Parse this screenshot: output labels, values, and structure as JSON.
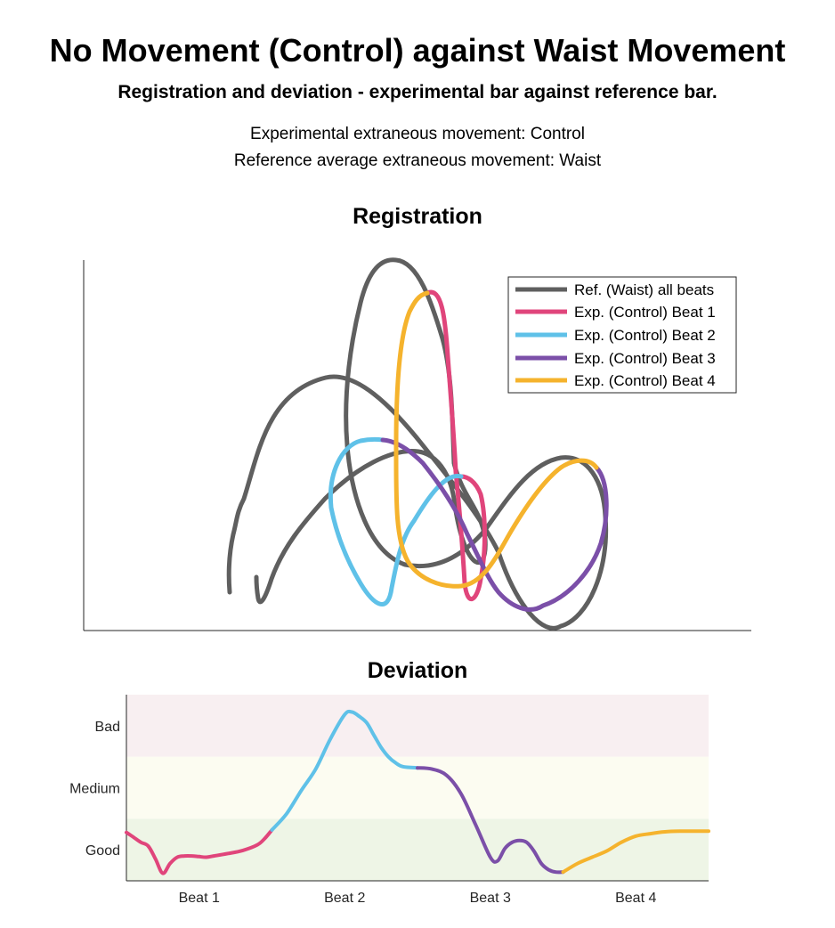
{
  "title": "No Movement (Control) against Waist Movement",
  "subtitle": "Registration and deviation - experimental bar against reference bar.",
  "info_experimental": "Experimental extraneous movement: Control",
  "info_reference": "Reference average extraneous movement: Waist",
  "chart_data": [
    {
      "type": "line",
      "title": "Registration",
      "xlabel": "",
      "ylabel": "",
      "axes_visible": "left and bottom axis lines only, no ticks",
      "legend_position": "top-right",
      "series": [
        {
          "name": "Ref. (Waist) all beats",
          "color": "#5f5f5f"
        },
        {
          "name": "Exp. (Control) Beat 1",
          "color": "#e0457b"
        },
        {
          "name": "Exp. (Control) Beat 2",
          "color": "#5fc1e8"
        },
        {
          "name": "Exp. (Control) Beat 3",
          "color": "#7b4fa8"
        },
        {
          "name": "Exp. (Control) Beat 4",
          "color": "#f5b32d"
        }
      ]
    },
    {
      "type": "line",
      "title": "Deviation",
      "xlabel": "",
      "ylabel": "",
      "xlim": [
        0,
        4
      ],
      "ylim": [
        0,
        3
      ],
      "x_tick_labels": [
        "Beat 1",
        "Beat 2",
        "Beat 3",
        "Beat 4"
      ],
      "y_tick_labels": [
        "Good",
        "Medium",
        "Bad"
      ],
      "bands": [
        {
          "label": "Good",
          "range": [
            0,
            1
          ],
          "color": "#eef5e6"
        },
        {
          "label": "Medium",
          "range": [
            1,
            2
          ],
          "color": "#fcfcf1"
        },
        {
          "label": "Bad",
          "range": [
            2,
            3
          ],
          "color": "#f8eff1"
        }
      ],
      "series": [
        {
          "name": "Exp. (Control) Beat 1",
          "color": "#e0457b",
          "x": [
            0.0,
            0.05,
            0.1,
            0.15,
            0.2,
            0.25,
            0.3,
            0.35,
            0.4,
            0.45,
            0.5,
            0.55,
            0.6,
            0.7,
            0.8,
            0.9,
            0.95,
            1.0
          ],
          "y": [
            0.78,
            0.7,
            0.62,
            0.56,
            0.35,
            0.12,
            0.28,
            0.38,
            0.4,
            0.4,
            0.39,
            0.38,
            0.4,
            0.44,
            0.49,
            0.58,
            0.68,
            0.82
          ]
        },
        {
          "name": "Exp. (Control) Beat 2",
          "color": "#5fc1e8",
          "x": [
            1.0,
            1.1,
            1.2,
            1.3,
            1.4,
            1.5,
            1.55,
            1.6,
            1.65,
            1.7,
            1.75,
            1.8,
            1.85,
            1.9,
            2.0
          ],
          "y": [
            0.82,
            1.08,
            1.45,
            1.8,
            2.28,
            2.68,
            2.72,
            2.65,
            2.55,
            2.35,
            2.15,
            2.0,
            1.9,
            1.84,
            1.82
          ]
        },
        {
          "name": "Exp. (Control) Beat 3",
          "color": "#7b4fa8",
          "x": [
            2.0,
            2.1,
            2.2,
            2.3,
            2.4,
            2.5,
            2.55,
            2.6,
            2.65,
            2.7,
            2.75,
            2.8,
            2.85,
            2.9,
            2.95,
            3.0
          ],
          "y": [
            1.82,
            1.8,
            1.7,
            1.4,
            0.9,
            0.38,
            0.32,
            0.52,
            0.62,
            0.65,
            0.62,
            0.48,
            0.28,
            0.18,
            0.14,
            0.14
          ]
        },
        {
          "name": "Exp. (Control) Beat 4",
          "color": "#f5b32d",
          "x": [
            3.0,
            3.1,
            3.2,
            3.3,
            3.4,
            3.5,
            3.6,
            3.7,
            3.8,
            3.9,
            4.0
          ],
          "y": [
            0.14,
            0.28,
            0.38,
            0.48,
            0.62,
            0.72,
            0.76,
            0.79,
            0.8,
            0.8,
            0.8
          ]
        }
      ]
    }
  ]
}
